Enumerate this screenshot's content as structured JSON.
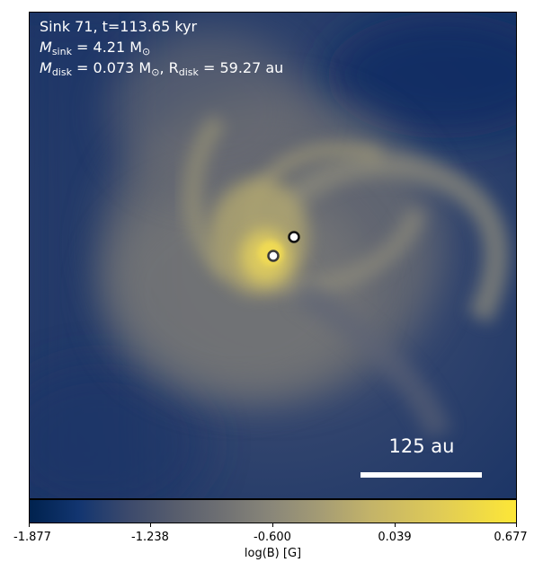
{
  "overlay": {
    "line1": "Sink 71, t=113.65 kyr",
    "msink_symbol": "M",
    "msink_sub": "sink",
    "msink_value": " = 4.21 M",
    "msink_unit_sub": "⊙",
    "mdisk_symbol": "M",
    "mdisk_sub": "disk",
    "mdisk_value": " = 0.073 M",
    "mdisk_unit_sub": "⊙",
    "rdisk_symbol": ", R",
    "rdisk_sub": "disk",
    "rdisk_value": " = 59.27 au"
  },
  "scalebar": {
    "label": "125 au"
  },
  "colorbar": {
    "ticks": [
      "-1.877",
      "-1.238",
      "-0.600",
      "0.039",
      "0.677"
    ],
    "label": "log(B) [G]",
    "colormap": "cividis"
  },
  "colors": {
    "background_dark": "#15305e",
    "field_mid": "#8a8a80",
    "field_bright": "#e6d25a",
    "sink_fill": "#ffffff"
  }
}
